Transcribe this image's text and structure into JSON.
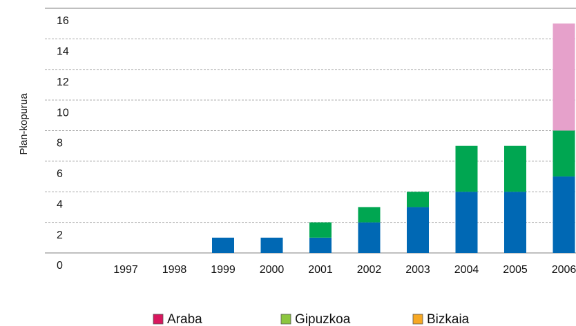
{
  "chart_data": {
    "type": "stacked_bar",
    "y_axis_label": "Plan-kopurua",
    "categories": [
      "1997",
      "1998",
      "1999",
      "2000",
      "2001",
      "2002",
      "2003",
      "2004",
      "2005",
      "2006"
    ],
    "series": [
      {
        "name": "Araba",
        "color": "#0068b4",
        "legend_color": "#d9175e",
        "values": [
          0,
          0,
          1,
          1,
          1,
          2,
          3,
          4,
          4,
          5
        ]
      },
      {
        "name": "Gipuzkoa",
        "color": "#00a651",
        "legend_color": "#8cc63f",
        "values": [
          0,
          0,
          0,
          0,
          1,
          1,
          1,
          3,
          3,
          3
        ]
      },
      {
        "name": "Bizkaia",
        "color": "#e6a1cb",
        "legend_color": "#f7a823",
        "values": [
          0,
          0,
          0,
          0,
          0,
          0,
          0,
          0,
          0,
          7
        ]
      }
    ],
    "ylim": [
      0,
      16
    ],
    "yticks": [
      0,
      2,
      4,
      6,
      8,
      10,
      12,
      14,
      16
    ],
    "grid": true
  }
}
